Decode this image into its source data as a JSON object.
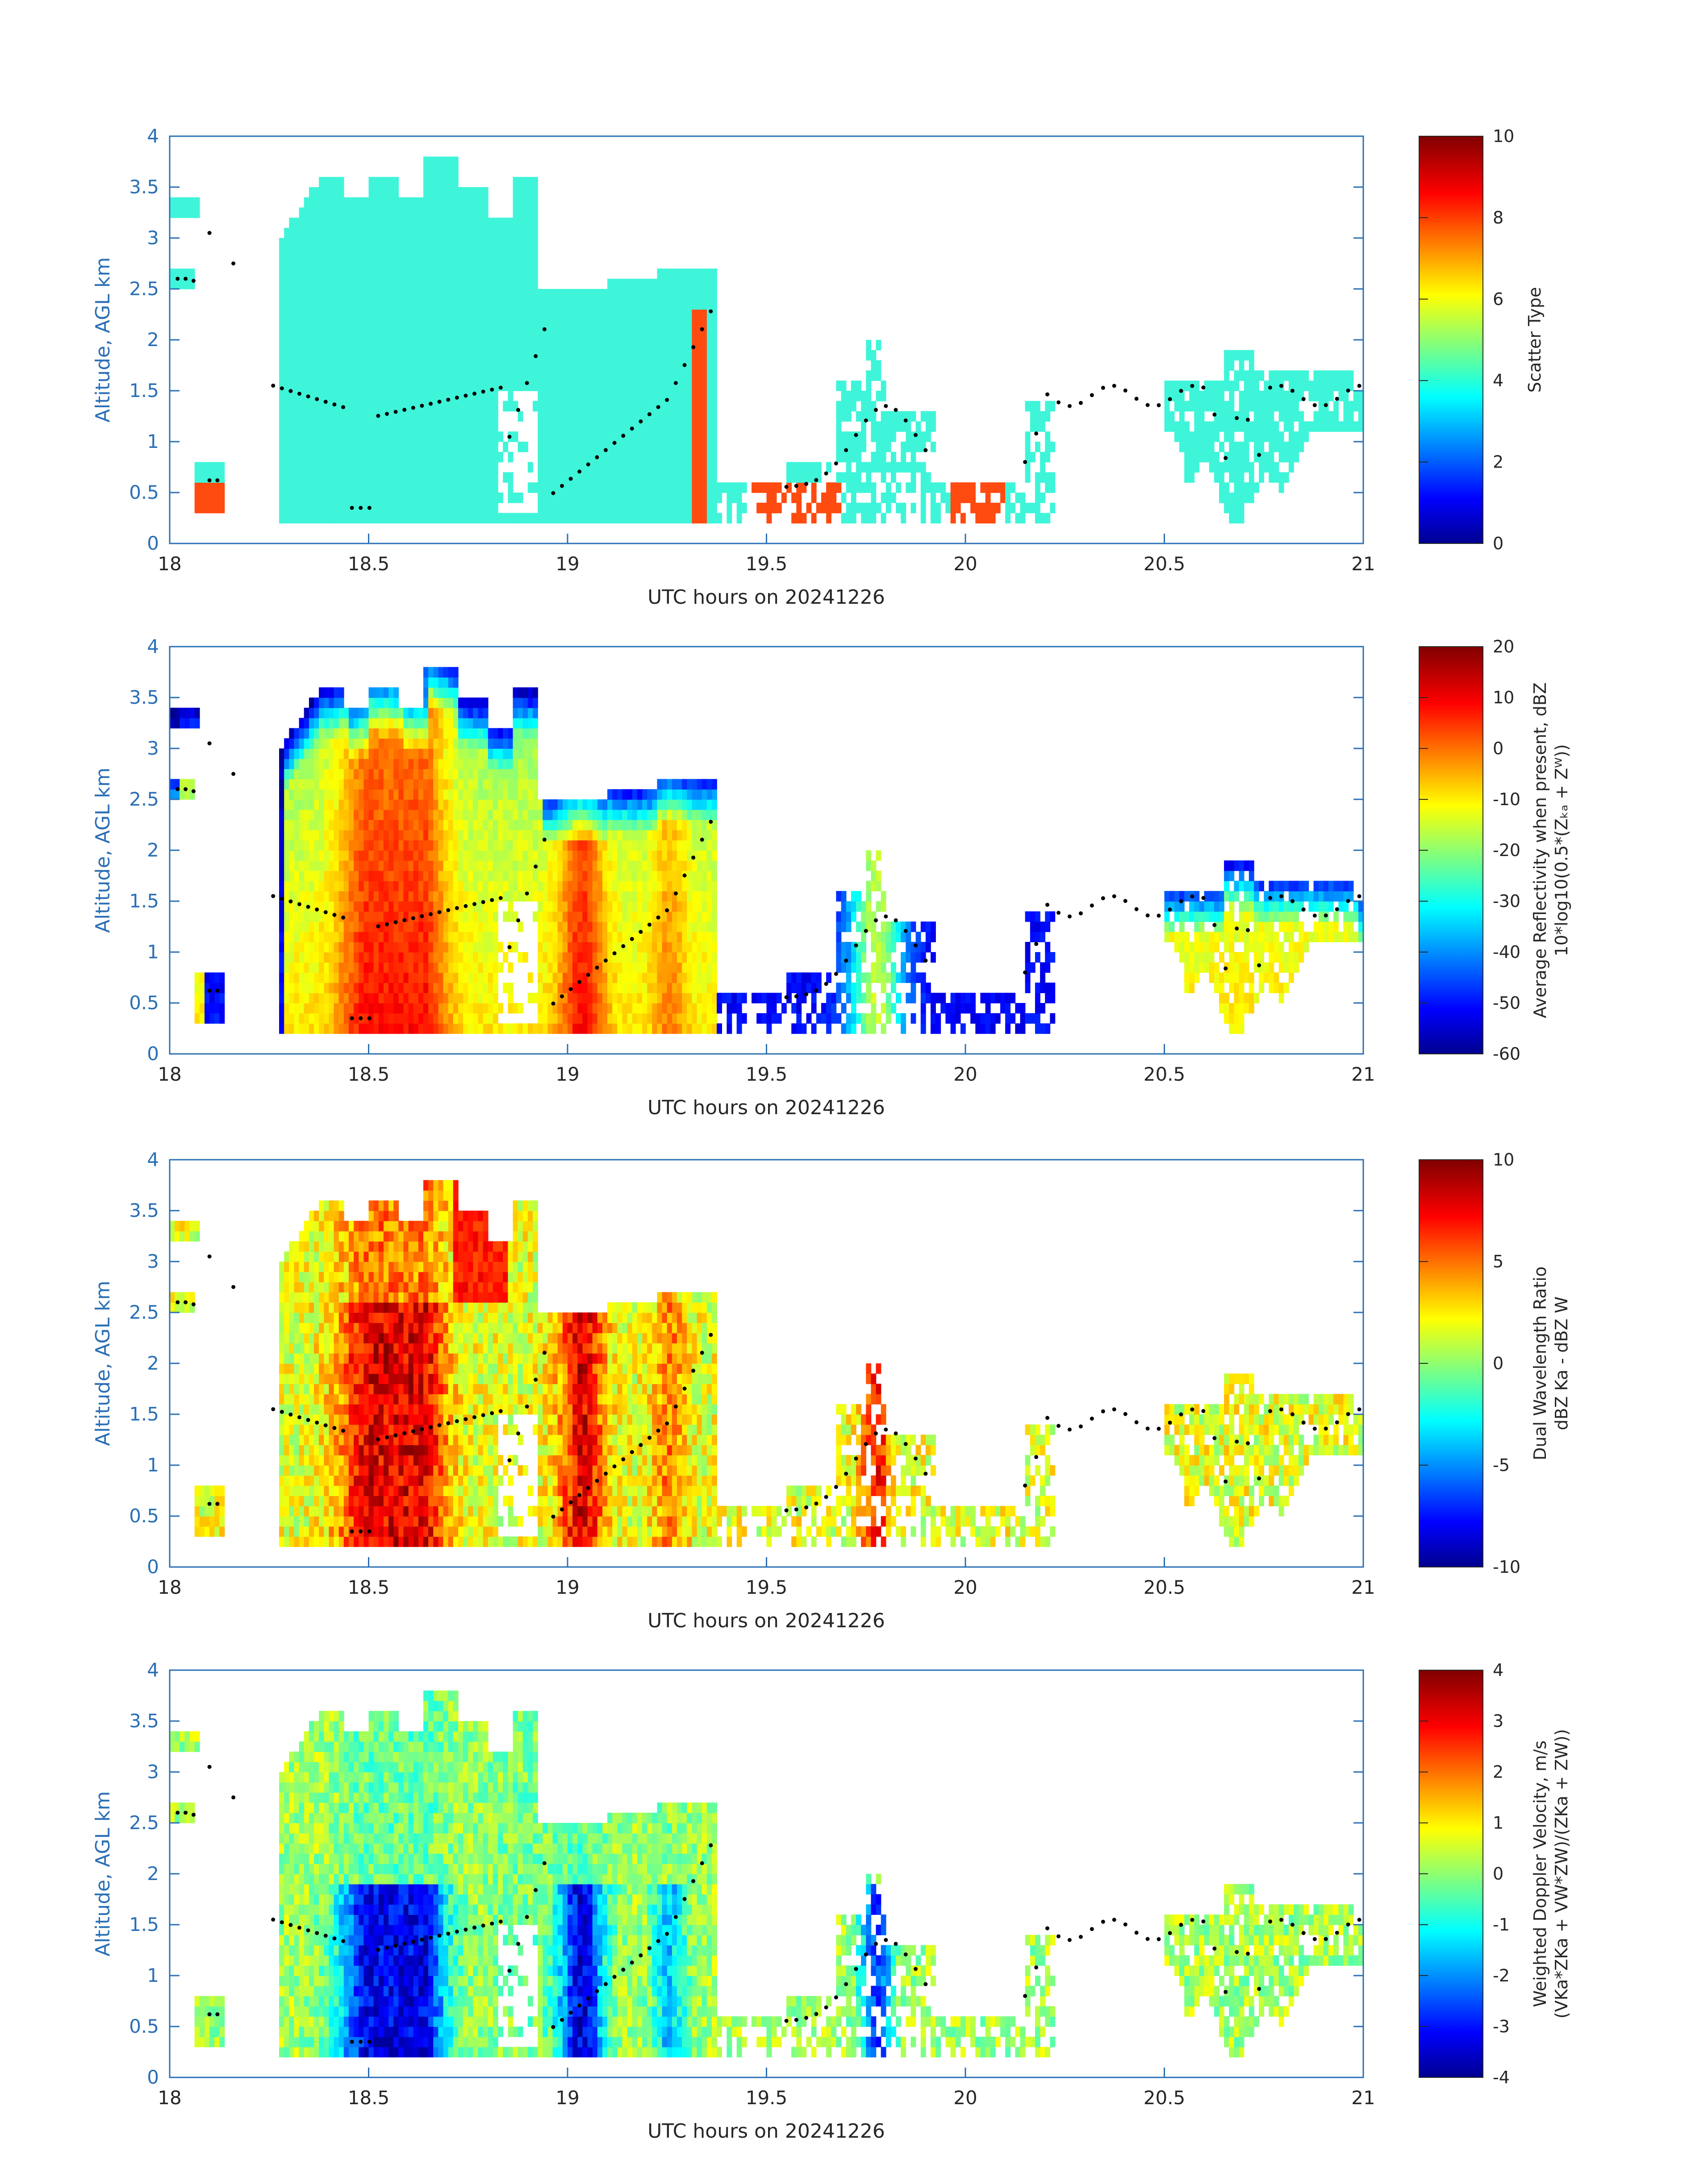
{
  "colors": {
    "axis_blue": "#2a6fb5",
    "tick_text": "#262626",
    "scatter_cyan": "#3ff5d9",
    "scatter_orange": "#ff4a10"
  },
  "chart_data": [
    {
      "type": "heatmap",
      "title": "",
      "xlabel": "UTC hours on 20241226",
      "ylabel": "Altitude, AGL km",
      "xlim": [
        18,
        21
      ],
      "ylim": [
        0,
        4
      ],
      "x_ticks": [
        "18",
        "18.5",
        "19",
        "19.5",
        "20",
        "20.5",
        "21"
      ],
      "y_ticks": [
        "0",
        "0.5",
        "1",
        "1.5",
        "2",
        "2.5",
        "3",
        "3.5",
        "4"
      ],
      "colorbar": {
        "label": "Scatter Type",
        "range": [
          0,
          10
        ],
        "ticks": [
          "0",
          "2",
          "4",
          "6",
          "8",
          "10"
        ],
        "colormap": "jet"
      },
      "field": "scatter",
      "dots": "cloud-base-markers"
    },
    {
      "type": "heatmap",
      "title": "",
      "xlabel": "UTC hours on 20241226",
      "ylabel": "Altitude, AGL km",
      "xlim": [
        18,
        21
      ],
      "ylim": [
        0,
        4
      ],
      "x_ticks": [
        "18",
        "18.5",
        "19",
        "19.5",
        "20",
        "20.5",
        "21"
      ],
      "y_ticks": [
        "0",
        "0.5",
        "1",
        "1.5",
        "2",
        "2.5",
        "3",
        "3.5",
        "4"
      ],
      "colorbar": {
        "label": "Average Reflectivity when present, dBZ",
        "label2": "10*log10(0.5*(Zₖₐ + Zᵂ))",
        "range": [
          -60,
          20
        ],
        "ticks": [
          "-60",
          "-50",
          "-40",
          "-30",
          "-20",
          "-10",
          "0",
          "10",
          "20"
        ],
        "colormap": "jet"
      },
      "field": "reflectivity",
      "dots": "cloud-base-markers"
    },
    {
      "type": "heatmap",
      "title": "",
      "xlabel": "UTC hours on 20241226",
      "ylabel": "Altitude, AGL km",
      "xlim": [
        18,
        21
      ],
      "ylim": [
        0,
        4
      ],
      "x_ticks": [
        "18",
        "18.5",
        "19",
        "19.5",
        "20",
        "20.5",
        "21"
      ],
      "y_ticks": [
        "0",
        "0.5",
        "1",
        "1.5",
        "2",
        "2.5",
        "3",
        "3.5",
        "4"
      ],
      "colorbar": {
        "label": "Dual Wavelength Ratio",
        "label2": "dBZ Ka - dBZ W",
        "range": [
          -10,
          10
        ],
        "ticks": [
          "-10",
          "-5",
          "0",
          "5",
          "10"
        ],
        "colormap": "jet"
      },
      "field": "dwr",
      "dots": "cloud-base-markers"
    },
    {
      "type": "heatmap",
      "title": "",
      "xlabel": "UTC hours on 20241226",
      "ylabel": "Altitude, AGL km",
      "xlim": [
        18,
        21
      ],
      "ylim": [
        0,
        4
      ],
      "x_ticks": [
        "18",
        "18.5",
        "19",
        "19.5",
        "20",
        "20.5",
        "21"
      ],
      "y_ticks": [
        "0",
        "0.5",
        "1",
        "1.5",
        "2",
        "2.5",
        "3",
        "3.5",
        "4"
      ],
      "colorbar": {
        "label": "Weighted Doppler Velocity, m/s",
        "label2": "(VKa*ZKa + VW*ZW)/(ZKa + ZW))",
        "range": [
          -4,
          4
        ],
        "ticks": [
          "-4",
          "-3",
          "-2",
          "-1",
          "0",
          "1",
          "2",
          "3",
          "4"
        ],
        "colormap": "jet"
      },
      "field": "velocity",
      "dots": "cloud-base-markers"
    }
  ]
}
